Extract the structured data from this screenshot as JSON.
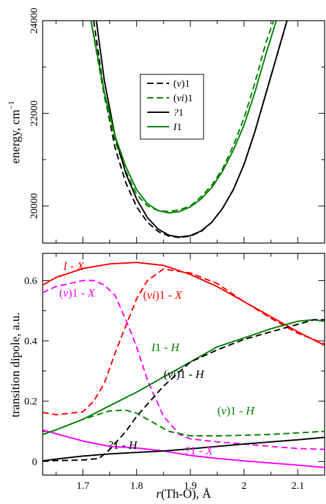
{
  "chart_data": [
    {
      "type": "line",
      "ylabel": "energy, cm",
      "ylabel_superscript": "−1",
      "xlim": [
        1.625,
        2.15
      ],
      "ylim": [
        19200,
        24000
      ],
      "yticks": [
        "20000",
        "22000",
        "24000"
      ],
      "ytick_values": [
        20000,
        22000,
        24000
      ],
      "legend_position": "center-right",
      "series": [
        {
          "name": "(v)1",
          "legend": [
            "(",
            "v",
            ")1"
          ],
          "color": "#000000",
          "dash": true,
          "x": [
            1.72,
            1.74,
            1.76,
            1.78,
            1.8,
            1.82,
            1.84,
            1.86,
            1.88,
            1.9,
            1.92,
            1.94,
            1.96,
            1.98,
            2.0,
            2.02,
            2.04,
            2.06,
            2.08
          ],
          "y": [
            24000,
            22400,
            21250,
            20500,
            19980,
            19650,
            19450,
            19350,
            19320,
            19350,
            19450,
            19650,
            19950,
            20350,
            20900,
            21600,
            22400,
            23200,
            24000
          ]
        },
        {
          "name": "(vi)1",
          "legend": [
            "(",
            "vi",
            ")1"
          ],
          "color": "#008000",
          "dash": true,
          "x": [
            1.715,
            1.74,
            1.76,
            1.78,
            1.8,
            1.82,
            1.84,
            1.86,
            1.88,
            1.9,
            1.92,
            1.94,
            1.96,
            1.98,
            2.0,
            2.02,
            2.04,
            2.055
          ],
          "y": [
            24000,
            22350,
            21400,
            20750,
            20250,
            20000,
            19900,
            19880,
            19920,
            20000,
            20200,
            20450,
            20800,
            21300,
            21900,
            22650,
            23500,
            24000
          ]
        },
        {
          "name": "?1",
          "legend": [
            "",
            "?",
            "1"
          ],
          "color": "#000000",
          "dash": false,
          "x": [
            1.725,
            1.74,
            1.76,
            1.78,
            1.8,
            1.82,
            1.84,
            1.86,
            1.88,
            1.9,
            1.92,
            1.94,
            1.96,
            1.98,
            2.0,
            2.02,
            2.04,
            2.06,
            2.08
          ],
          "y": [
            24000,
            22700,
            21500,
            20700,
            20150,
            19750,
            19500,
            19370,
            19330,
            19360,
            19460,
            19650,
            19950,
            20350,
            20900,
            21600,
            22400,
            23200,
            24000
          ]
        },
        {
          "name": "I1",
          "legend": [
            "",
            "I",
            "1"
          ],
          "color": "#008000",
          "dash": false,
          "x": [
            1.715,
            1.74,
            1.76,
            1.78,
            1.8,
            1.82,
            1.84,
            1.86,
            1.88,
            1.9,
            1.92,
            1.94,
            1.96,
            1.98,
            2.0,
            2.02,
            2.04,
            2.06
          ],
          "y": [
            24000,
            22450,
            21500,
            20850,
            20350,
            20050,
            19900,
            19850,
            19880,
            19980,
            20150,
            20400,
            20750,
            21200,
            21750,
            22450,
            23250,
            24000
          ]
        }
      ]
    },
    {
      "type": "line",
      "xlabel": "r(Th-O), Å",
      "xlabel_parts": [
        "r",
        "(Th-O), Å"
      ],
      "ylabel": "transition dipole, a.u.",
      "xlim": [
        1.625,
        2.15
      ],
      "ylim": [
        -0.045,
        0.69
      ],
      "xticks": [
        "1.7",
        "1.8",
        "1.9",
        "2",
        "2.1"
      ],
      "xtick_values": [
        1.7,
        1.8,
        1.9,
        2.0,
        2.1
      ],
      "yticks": [
        "0",
        "0.2",
        "0.4",
        "0.6"
      ],
      "ytick_values": [
        0,
        0.2,
        0.4,
        0.6
      ],
      "series": [
        {
          "name": "I - X",
          "color": "#ff0000",
          "dash": false,
          "x": [
            1.625,
            1.65,
            1.7,
            1.75,
            1.8,
            1.85,
            1.9,
            1.95,
            2.0,
            2.05,
            2.1,
            2.15
          ],
          "y": [
            0.585,
            0.61,
            0.64,
            0.655,
            0.66,
            0.65,
            0.62,
            0.58,
            0.53,
            0.48,
            0.43,
            0.385
          ]
        },
        {
          "name": "(vi)1 - X",
          "color": "#ff0000",
          "dash": true,
          "x": [
            1.625,
            1.65,
            1.7,
            1.72,
            1.74,
            1.76,
            1.78,
            1.8,
            1.82,
            1.85,
            1.9,
            1.95,
            2.0,
            2.05,
            2.1,
            2.15
          ],
          "y": [
            0.163,
            0.155,
            0.165,
            0.2,
            0.26,
            0.36,
            0.45,
            0.54,
            0.6,
            0.638,
            0.625,
            0.59,
            0.53,
            0.475,
            0.425,
            0.39
          ]
        },
        {
          "name": "(v)1 - X",
          "color": "#ff00ff",
          "dash": true,
          "x": [
            1.625,
            1.65,
            1.7,
            1.72,
            1.74,
            1.76,
            1.78,
            1.8,
            1.82,
            1.85,
            1.88,
            1.9,
            1.95,
            2.0,
            2.05,
            2.1,
            2.15
          ],
          "y": [
            0.56,
            0.58,
            0.6,
            0.6,
            0.585,
            0.55,
            0.47,
            0.38,
            0.27,
            0.15,
            0.09,
            0.075,
            0.065,
            0.058,
            0.05,
            0.043,
            0.04
          ]
        },
        {
          "name": "?1 - X",
          "color": "#ff00ff",
          "dash": false,
          "x": [
            1.625,
            1.65,
            1.7,
            1.75,
            1.8,
            1.85,
            1.9,
            1.95,
            2.0,
            2.05,
            2.1,
            2.15
          ],
          "y": [
            0.105,
            0.092,
            0.068,
            0.05,
            0.045,
            0.035,
            0.02,
            0.01,
            0.002,
            -0.005,
            -0.012,
            -0.02
          ]
        },
        {
          "name": "I1 - H",
          "color": "#008000",
          "dash": false,
          "x": [
            1.625,
            1.65,
            1.7,
            1.75,
            1.8,
            1.85,
            1.9,
            1.95,
            2.0,
            2.05,
            2.1,
            2.13,
            2.15
          ],
          "y": [
            0.09,
            0.105,
            0.14,
            0.185,
            0.23,
            0.28,
            0.33,
            0.38,
            0.41,
            0.44,
            0.465,
            0.47,
            0.465
          ]
        },
        {
          "name": "(vi)1 - H",
          "color": "#000000",
          "dash": true,
          "x": [
            1.625,
            1.65,
            1.7,
            1.73,
            1.75,
            1.78,
            1.8,
            1.85,
            1.9,
            1.95,
            2.0,
            2.05,
            2.1,
            2.13,
            2.15
          ],
          "y": [
            0.002,
            0.003,
            0.005,
            0.01,
            0.04,
            0.1,
            0.15,
            0.25,
            0.33,
            0.37,
            0.405,
            0.43,
            0.455,
            0.47,
            0.47
          ]
        },
        {
          "name": "(v)1 - H",
          "color": "#008000",
          "dash": true,
          "x": [
            1.625,
            1.65,
            1.7,
            1.75,
            1.78,
            1.8,
            1.83,
            1.86,
            1.9,
            1.95,
            2.0,
            2.05,
            2.1,
            2.15
          ],
          "y": [
            0.09,
            0.105,
            0.14,
            0.168,
            0.17,
            0.16,
            0.13,
            0.1,
            0.085,
            0.085,
            0.087,
            0.09,
            0.095,
            0.1
          ]
        },
        {
          "name": "?1 - H",
          "color": "#000000",
          "dash": false,
          "x": [
            1.625,
            1.65,
            1.7,
            1.75,
            1.8,
            1.85,
            1.9,
            1.95,
            2.0,
            2.05,
            2.1,
            2.15
          ],
          "y": [
            0.002,
            0.008,
            0.018,
            0.025,
            0.03,
            0.035,
            0.042,
            0.05,
            0.058,
            0.065,
            0.072,
            0.08
          ]
        }
      ],
      "annotations": [
        {
          "parts": [
            [
              "I",
              true
            ],
            [
              " - ",
              false
            ],
            [
              "X",
              true
            ]
          ],
          "color": "#ff0000"
        },
        {
          "parts": [
            [
              "(",
              false
            ],
            [
              "vi",
              true
            ],
            [
              ")1 - ",
              false
            ],
            [
              "X",
              true
            ]
          ],
          "color": "#ff0000"
        },
        {
          "parts": [
            [
              "(",
              false
            ],
            [
              "v",
              true
            ],
            [
              ")1 - ",
              false
            ],
            [
              "X",
              true
            ]
          ],
          "color": "#ff00ff"
        },
        {
          "parts": [
            [
              "I",
              true
            ],
            [
              "1 - ",
              false
            ],
            [
              "H",
              true
            ]
          ],
          "color": "#008000"
        },
        {
          "parts": [
            [
              "(",
              false
            ],
            [
              "vi",
              true
            ],
            [
              ")1 - ",
              false
            ],
            [
              "H",
              true
            ]
          ],
          "color": "#000000"
        },
        {
          "parts": [
            [
              "(",
              false
            ],
            [
              "v",
              true
            ],
            [
              ")1 - ",
              false
            ],
            [
              "H",
              true
            ]
          ],
          "color": "#008000"
        },
        {
          "parts": [
            [
              "?",
              true
            ],
            [
              "1 - ",
              false
            ],
            [
              "H",
              true
            ]
          ],
          "color": "#000000"
        },
        {
          "parts": [
            [
              "?",
              true
            ],
            [
              "1 - ",
              false
            ],
            [
              "X",
              true
            ]
          ],
          "color": "#ff00ff"
        }
      ]
    }
  ]
}
